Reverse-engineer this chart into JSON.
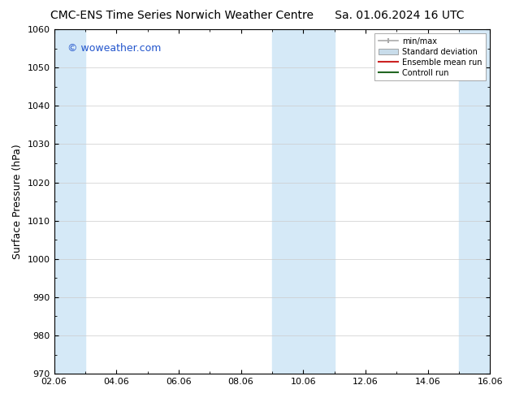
{
  "title_left": "CMC-ENS Time Series Norwich Weather Centre",
  "title_right": "Sa. 01.06.2024 16 UTC",
  "ylabel": "Surface Pressure (hPa)",
  "ylim": [
    970,
    1060
  ],
  "yticks": [
    970,
    980,
    990,
    1000,
    1010,
    1020,
    1030,
    1040,
    1050,
    1060
  ],
  "xlim": [
    0,
    14
  ],
  "xtick_labels": [
    "02.06",
    "04.06",
    "06.06",
    "08.06",
    "10.06",
    "12.06",
    "14.06",
    "16.06"
  ],
  "xtick_positions": [
    0,
    2,
    4,
    6,
    8,
    10,
    12,
    14
  ],
  "watermark": "© woweather.com",
  "watermark_color": "#2255cc",
  "background_color": "#ffffff",
  "plot_bg_color": "#ffffff",
  "shaded_bands": [
    {
      "x_start": 0,
      "x_end": 1.0,
      "color": "#d5e9f7"
    },
    {
      "x_start": 7,
      "x_end": 9,
      "color": "#d5e9f7"
    },
    {
      "x_start": 13,
      "x_end": 14,
      "color": "#d5e9f7"
    }
  ],
  "legend_items": [
    {
      "label": "min/max",
      "color": "#aaaaaa",
      "type": "errorbar"
    },
    {
      "label": "Standard deviation",
      "color": "#c8dcea",
      "type": "fill"
    },
    {
      "label": "Ensemble mean run",
      "color": "#cc2222",
      "type": "line"
    },
    {
      "label": "Controll run",
      "color": "#226622",
      "type": "line"
    }
  ],
  "title_fontsize": 10,
  "axis_fontsize": 9,
  "tick_fontsize": 8
}
